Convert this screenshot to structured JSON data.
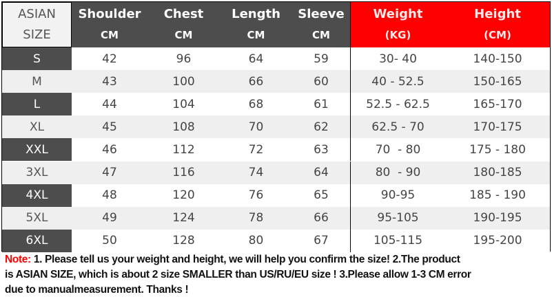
{
  "header": {
    "size": [
      "ASIAN",
      "SIZE"
    ],
    "columns": [
      {
        "label": "Shoulder",
        "unit": "CM"
      },
      {
        "label": "Chest",
        "unit": "CM"
      },
      {
        "label": "Length",
        "unit": "CM"
      },
      {
        "label": "Sleeve",
        "unit": "CM"
      },
      {
        "label": "Weight",
        "unit": "(KG)"
      },
      {
        "label": "Height",
        "unit": "(CM)"
      }
    ]
  },
  "rows": [
    [
      "S",
      "42",
      "96",
      "64",
      "59",
      "30- 40",
      "140-150"
    ],
    [
      "M",
      "43",
      "100",
      "66",
      "60",
      "40 - 52.5",
      "150-165"
    ],
    [
      "L",
      "44",
      "104",
      "68",
      "61",
      "52.5 - 62.5",
      "165-170"
    ],
    [
      "XL",
      "45",
      "108",
      "70",
      "62",
      "62.5 - 70",
      "170-175"
    ],
    [
      "XXL",
      "46",
      "112",
      "72",
      "63",
      "70  - 80",
      "175 - 180"
    ],
    [
      "3XL",
      "47",
      "116",
      "74",
      "64",
      "80  - 90",
      "180-185"
    ],
    [
      "4XL",
      "48",
      "120",
      "76",
      "65",
      "90-95",
      "185 - 190"
    ],
    [
      "5XL",
      "49",
      "124",
      "78",
      "66",
      "95-105",
      "190-195"
    ],
    [
      "6XL",
      "50",
      "128",
      "80",
      "67",
      "105-115",
      "195-200"
    ]
  ],
  "note": {
    "label": "Note:",
    "lines": [
      " 1. Please tell us your weight and height, we will help you confirm the size!  2.The product",
      "is ASIAN SIZE, which is about 2 size SMALLER than US/RU/EU size ! 3.Please allow 1-3 CM error",
      "due to manualmeasurement.  Thanks !"
    ]
  },
  "colors": {
    "header_dark": "#4d4d4d",
    "header_red": "#ff0000",
    "note_label": "#ff0000"
  }
}
